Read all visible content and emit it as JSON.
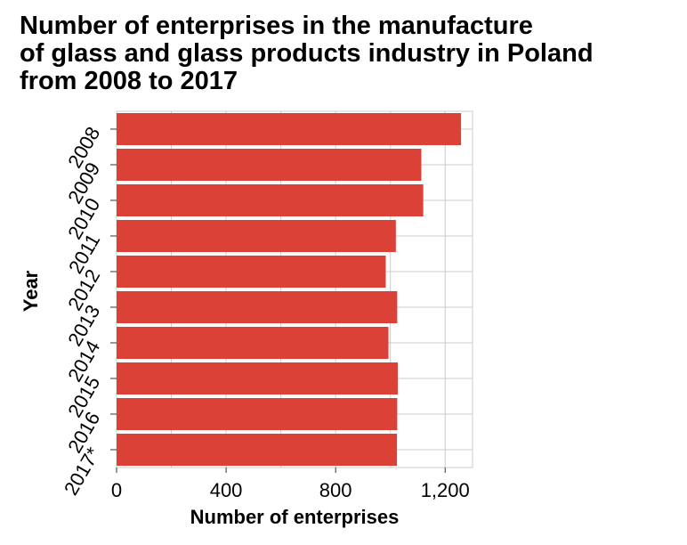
{
  "chart_data": {
    "type": "bar",
    "orientation": "horizontal",
    "title": "Number of enterprises in the manufacture\nof glass and glass products industry in Poland\nfrom 2008 to 2017",
    "xlabel": "Number of enterprises",
    "ylabel": "Year",
    "categories": [
      "2008",
      "2009",
      "2010",
      "2011",
      "2012",
      "2013",
      "2014",
      "2015",
      "2016",
      "2017*"
    ],
    "values": [
      1258,
      1113,
      1120,
      1020,
      983,
      1025,
      993,
      1027,
      1025,
      1024
    ],
    "xlim": [
      0,
      1300
    ],
    "x_ticks": [
      0,
      400,
      800,
      1200
    ],
    "x_tick_labels": [
      "0",
      "400",
      "800",
      "1,200"
    ],
    "grid": true,
    "bar_color": "#dc4138",
    "grid_color": "#cccccc"
  }
}
